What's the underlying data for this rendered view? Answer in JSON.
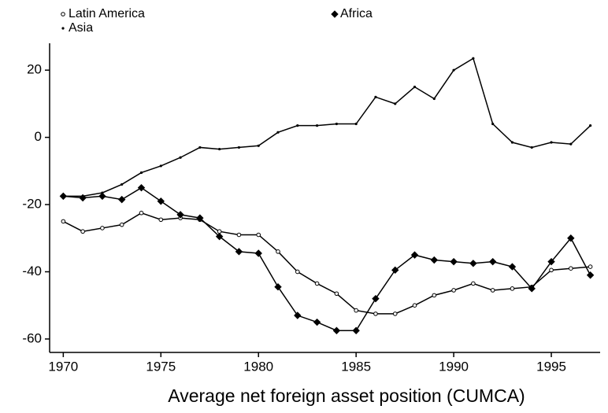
{
  "chart_data": {
    "type": "line",
    "x_label": "Average net foreign asset position (CUMCA)",
    "x": [
      1970,
      1971,
      1972,
      1973,
      1974,
      1975,
      1976,
      1977,
      1978,
      1979,
      1980,
      1981,
      1982,
      1983,
      1984,
      1985,
      1986,
      1987,
      1988,
      1989,
      1990,
      1991,
      1992,
      1993,
      1994,
      1995,
      1996,
      1997
    ],
    "series": [
      {
        "name": "Latin America",
        "color": "#000000",
        "marker": "circle",
        "values": [
          -25,
          -28,
          -27,
          -26,
          -22.5,
          -24.5,
          -24,
          -24.5,
          -28,
          -29,
          -29,
          -34,
          -40,
          -43.5,
          -46.5,
          -51.5,
          -52.5,
          -52.5,
          -50,
          -47,
          -45.5,
          -43.5,
          -45.5,
          -45,
          -44.5,
          -39.5,
          -39,
          -38.5
        ]
      },
      {
        "name": "Asia",
        "color": "#000000",
        "marker": "dot",
        "values": [
          -17.5,
          -17.5,
          -16.5,
          -14,
          -10.5,
          -8.5,
          -6,
          -3,
          -3.5,
          -3,
          -2.5,
          1.5,
          3.5,
          3.5,
          4,
          4,
          12,
          10,
          15,
          11.5,
          20,
          23.5,
          4,
          -1.5,
          -3,
          -1.5,
          -2,
          3.5
        ]
      },
      {
        "name": "Africa",
        "color": "#000000",
        "marker": "diamond",
        "values": [
          -17.5,
          -18,
          -17.5,
          -18.5,
          -15,
          -19,
          -23,
          -24,
          -29.5,
          -34,
          -34.5,
          -44.5,
          -53,
          -55,
          -57.5,
          -57.5,
          -48,
          -39.5,
          -35,
          -36.5,
          -37,
          -37.5,
          -37,
          -38.5,
          -45,
          -37,
          -30,
          -41
        ]
      }
    ],
    "xlim": [
      1969.3,
      1997.5
    ],
    "ylim": [
      -64,
      28
    ],
    "xticks": [
      1970,
      1975,
      1980,
      1985,
      1990,
      1995
    ],
    "yticks": [
      -60,
      -40,
      -20,
      0,
      20
    ]
  }
}
